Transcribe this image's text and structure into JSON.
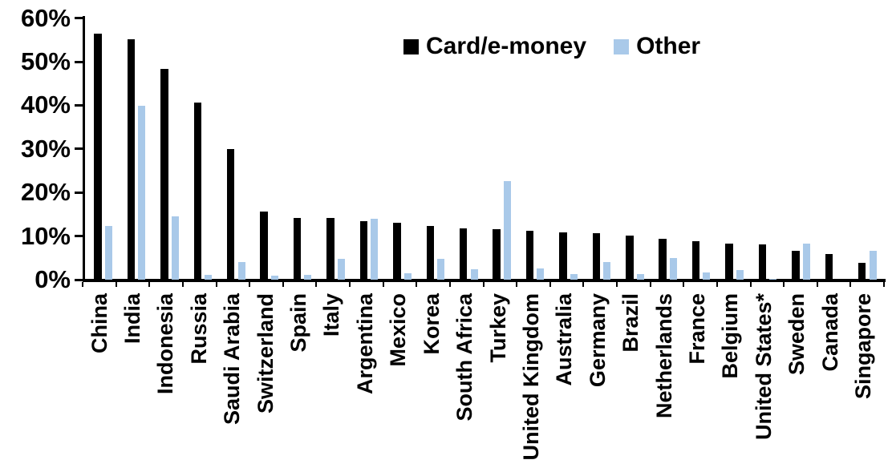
{
  "chart_data": {
    "type": "bar",
    "title": "",
    "categories": [
      "China",
      "India",
      "Indonesia",
      "Russia",
      "Saudi Arabia",
      "Switzerland",
      "Spain",
      "Italy",
      "Argentina",
      "Mexico",
      "Korea",
      "South Africa",
      "Turkey",
      "United Kingdom",
      "Australia",
      "Germany",
      "Brazil",
      "Netherlands",
      "France",
      "Belgium",
      "United States*",
      "Sweden",
      "Canada",
      "Singapore"
    ],
    "series": [
      {
        "name": "Card/e-money",
        "color": "#000000",
        "values": [
          56.4,
          55.2,
          48.4,
          40.6,
          29.9,
          15.7,
          14.2,
          14.1,
          13.5,
          13.0,
          12.3,
          11.8,
          11.6,
          11.2,
          10.8,
          10.6,
          10.1,
          9.3,
          8.8,
          8.2,
          8.0,
          6.6,
          5.9,
          3.8
        ]
      },
      {
        "name": "Other",
        "color": "#A9C9E9",
        "values": [
          12.3,
          39.8,
          14.6,
          1.1,
          4.0,
          0.9,
          1.1,
          4.7,
          14.0,
          1.4,
          4.7,
          2.4,
          22.6,
          2.5,
          1.2,
          4.0,
          1.3,
          5.0,
          1.7,
          2.2,
          0.2,
          8.2,
          0,
          6.7
        ]
      }
    ],
    "y_axis": {
      "min": 0,
      "max": 60,
      "tick_step": 10,
      "tick_labels": [
        "0%",
        "10%",
        "20%",
        "30%",
        "40%",
        "50%",
        "60%"
      ],
      "unit": "%"
    },
    "x_axis": {
      "label_rotation_degrees": -90
    },
    "legend": {
      "position": "top-center"
    },
    "grid": "off"
  },
  "colors": {
    "card_series": "#000000",
    "other_series": "#A9C9E9",
    "axis": "#000000",
    "background": "#FFFFFF"
  }
}
